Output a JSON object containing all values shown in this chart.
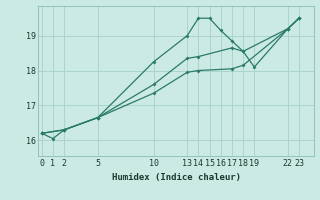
{
  "xlabel": "Humidex (Indice chaleur)",
  "bg_color": "#cceae4",
  "line_color": "#2a7a6a",
  "grid_color": "#aad4cc",
  "xticks": [
    0,
    1,
    2,
    5,
    10,
    13,
    14,
    15,
    16,
    17,
    18,
    19,
    22,
    23
  ],
  "yticks": [
    16,
    17,
    18,
    19
  ],
  "xlim": [
    -0.3,
    24.3
  ],
  "ylim": [
    15.55,
    19.85
  ],
  "line1_x": [
    0,
    1,
    2,
    5,
    10,
    13,
    14,
    15,
    16,
    17,
    18,
    19,
    22,
    23
  ],
  "line1_y": [
    16.2,
    16.05,
    16.3,
    16.65,
    18.25,
    19.0,
    19.5,
    19.5,
    19.15,
    18.85,
    18.55,
    18.1,
    19.2,
    19.5
  ],
  "line2_x": [
    0,
    2,
    5,
    10,
    13,
    14,
    17,
    18,
    22,
    23
  ],
  "line2_y": [
    16.2,
    16.3,
    16.65,
    17.6,
    18.35,
    18.4,
    18.65,
    18.55,
    19.2,
    19.5
  ],
  "line3_x": [
    0,
    2,
    5,
    10,
    13,
    14,
    17,
    18,
    22,
    23
  ],
  "line3_y": [
    16.2,
    16.3,
    16.65,
    17.35,
    17.95,
    18.0,
    18.05,
    18.15,
    19.2,
    19.5
  ],
  "xlabel_fontsize": 6.5,
  "tick_fontsize": 6.0
}
